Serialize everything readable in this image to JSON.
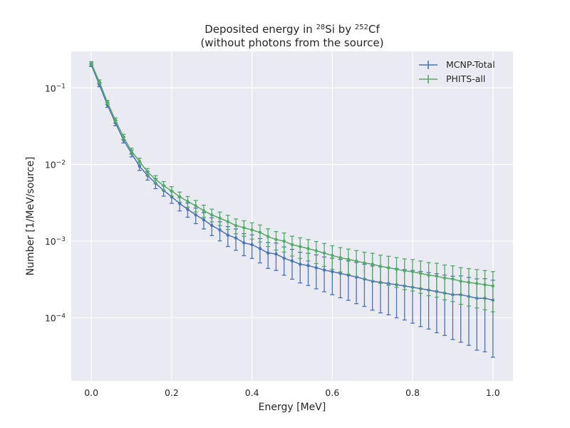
{
  "chart_data": {
    "type": "scatter",
    "title_line1": {
      "pre": "Deposited energy in ",
      "sup1": "28",
      "mid": "Si by ",
      "sup2": "252",
      "post": "Cf"
    },
    "title_line2": "(without photons from the source)",
    "xlabel": "Energy [MeV]",
    "ylabel": "Number [1/MeV/source]",
    "x_scale": "linear",
    "y_scale": "log",
    "xlim": [
      -0.05,
      1.05
    ],
    "ylim": [
      1.5e-05,
      0.3
    ],
    "x_ticks": [
      0.0,
      0.2,
      0.4,
      0.6,
      0.8,
      1.0
    ],
    "x_tick_labels": [
      "0.0",
      "0.2",
      "0.4",
      "0.6",
      "0.8",
      "1.0"
    ],
    "y_ticks": [
      0.0001,
      0.001,
      0.01,
      0.1
    ],
    "y_tick_labels": [
      {
        "base": "10",
        "exp": "−4"
      },
      {
        "base": "10",
        "exp": "−3"
      },
      {
        "base": "10",
        "exp": "−2"
      },
      {
        "base": "10",
        "exp": "−1"
      }
    ],
    "grid": true,
    "legend_position": "top-right",
    "series": [
      {
        "name": "MCNP-Total",
        "color": "#4c72b0",
        "x": [
          0.0,
          0.02,
          0.04,
          0.06,
          0.08,
          0.1,
          0.12,
          0.14,
          0.16,
          0.18,
          0.2,
          0.22,
          0.24,
          0.26,
          0.28,
          0.3,
          0.32,
          0.34,
          0.36,
          0.38,
          0.4,
          0.42,
          0.44,
          0.46,
          0.48,
          0.5,
          0.52,
          0.54,
          0.56,
          0.58,
          0.6,
          0.62,
          0.64,
          0.66,
          0.68,
          0.7,
          0.72,
          0.74,
          0.76,
          0.78,
          0.8,
          0.82,
          0.84,
          0.86,
          0.88,
          0.9,
          0.92,
          0.94,
          0.96,
          0.98,
          1.0
        ],
        "y": [
          0.2,
          0.11,
          0.06,
          0.035,
          0.021,
          0.014,
          0.0095,
          0.0072,
          0.0057,
          0.0046,
          0.0038,
          0.0031,
          0.0026,
          0.0022,
          0.0019,
          0.0016,
          0.0014,
          0.0012,
          0.0011,
          0.00095,
          0.0009,
          0.0008,
          0.0007,
          0.00068,
          0.0006,
          0.00055,
          0.0005,
          0.00048,
          0.00045,
          0.00042,
          0.0004,
          0.00038,
          0.00036,
          0.00034,
          0.00032,
          0.0003,
          0.00029,
          0.00028,
          0.00027,
          0.00026,
          0.00025,
          0.00024,
          0.00023,
          0.00022,
          0.00021,
          0.0002,
          0.0002,
          0.00019,
          0.00018,
          0.00018,
          0.00017
        ],
        "rel_err": [
          0.05,
          0.06,
          0.07,
          0.08,
          0.09,
          0.1,
          0.12,
          0.13,
          0.15,
          0.16,
          0.18,
          0.2,
          0.21,
          0.23,
          0.24,
          0.26,
          0.28,
          0.29,
          0.31,
          0.32,
          0.34,
          0.35,
          0.37,
          0.39,
          0.4,
          0.42,
          0.43,
          0.45,
          0.47,
          0.48,
          0.5,
          0.52,
          0.53,
          0.55,
          0.56,
          0.58,
          0.6,
          0.61,
          0.63,
          0.64,
          0.66,
          0.68,
          0.69,
          0.71,
          0.72,
          0.74,
          0.76,
          0.77,
          0.79,
          0.8,
          0.82
        ]
      },
      {
        "name": "PHITS-all",
        "color": "#55a868",
        "x": [
          0.0,
          0.02,
          0.04,
          0.06,
          0.08,
          0.1,
          0.12,
          0.14,
          0.16,
          0.18,
          0.2,
          0.22,
          0.24,
          0.26,
          0.28,
          0.3,
          0.32,
          0.34,
          0.36,
          0.38,
          0.4,
          0.42,
          0.44,
          0.46,
          0.48,
          0.5,
          0.52,
          0.54,
          0.56,
          0.58,
          0.6,
          0.62,
          0.64,
          0.66,
          0.68,
          0.7,
          0.72,
          0.74,
          0.76,
          0.78,
          0.8,
          0.82,
          0.84,
          0.86,
          0.88,
          0.9,
          0.92,
          0.94,
          0.96,
          0.98,
          1.0
        ],
        "y": [
          0.21,
          0.12,
          0.065,
          0.038,
          0.023,
          0.015,
          0.011,
          0.008,
          0.0064,
          0.0053,
          0.0045,
          0.0038,
          0.0033,
          0.0029,
          0.0025,
          0.0022,
          0.002,
          0.0018,
          0.0016,
          0.0015,
          0.0014,
          0.0013,
          0.00115,
          0.00105,
          0.001,
          0.0009,
          0.00085,
          0.0008,
          0.00075,
          0.0007,
          0.00065,
          0.00061,
          0.00058,
          0.00055,
          0.00052,
          0.0005,
          0.00047,
          0.00045,
          0.00043,
          0.00041,
          0.0004,
          0.00038,
          0.00036,
          0.00035,
          0.00033,
          0.00032,
          0.0003,
          0.00029,
          0.00028,
          0.00027,
          0.00026
        ],
        "rel_err": [
          0.05,
          0.06,
          0.06,
          0.07,
          0.08,
          0.09,
          0.1,
          0.11,
          0.12,
          0.13,
          0.14,
          0.15,
          0.16,
          0.17,
          0.18,
          0.19,
          0.2,
          0.21,
          0.22,
          0.23,
          0.24,
          0.25,
          0.26,
          0.27,
          0.28,
          0.29,
          0.3,
          0.31,
          0.32,
          0.33,
          0.34,
          0.35,
          0.36,
          0.37,
          0.38,
          0.39,
          0.4,
          0.41,
          0.42,
          0.43,
          0.44,
          0.45,
          0.46,
          0.47,
          0.48,
          0.49,
          0.5,
          0.51,
          0.52,
          0.53,
          0.54
        ]
      }
    ]
  },
  "colors": {
    "plot_background": "#eaeaf2",
    "grid": "#ffffff"
  }
}
